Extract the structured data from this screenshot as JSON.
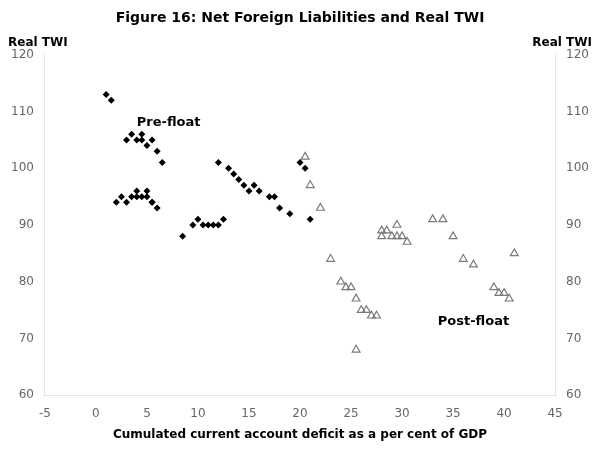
{
  "chart_data": {
    "type": "scatter",
    "title": "Figure 16: Net Foreign Liabilities and Real TWI",
    "xlabel": "Cumulated current account deficit as a per cent of GDP",
    "ylabel": "Real TWI",
    "y2label": "Real TWI",
    "xlim": [
      -5,
      45
    ],
    "ylim": [
      60,
      120
    ],
    "y2lim": [
      60,
      120
    ],
    "xticks": [
      -5,
      0,
      5,
      10,
      15,
      20,
      25,
      30,
      35,
      40,
      45
    ],
    "yticks": [
      60,
      70,
      80,
      90,
      100,
      110,
      120
    ],
    "y2ticks": [
      60,
      70,
      80,
      90,
      100,
      110,
      120
    ],
    "grid": false,
    "series": [
      {
        "color": "#000000",
        "marker": "diamond",
        "x": [
          1,
          1.5,
          2,
          2.5,
          3,
          3.5,
          4,
          4,
          4.5,
          5,
          5,
          5.5,
          5.5,
          6,
          3,
          3.5,
          4,
          4.5,
          4.5,
          5,
          5.5,
          6,
          6.5,
          8.5,
          9.5,
          10,
          10.5,
          11,
          11.5,
          12,
          12.5,
          12,
          13,
          13.5,
          14,
          14.5,
          15,
          15.5,
          16,
          17,
          17.5,
          18,
          19,
          20,
          20.5,
          21
        ],
        "values": [
          113,
          112,
          94,
          95,
          94,
          95,
          95,
          96,
          95,
          95,
          96,
          94,
          94,
          93,
          105,
          106,
          105,
          106,
          105,
          104,
          105,
          103,
          101,
          88,
          90,
          91,
          90,
          90,
          90,
          90,
          91,
          101,
          100,
          99,
          98,
          97,
          96,
          97,
          96,
          95,
          95,
          93,
          92,
          101,
          100,
          91
        ]
      },
      {
        "color": "#7a7a7a",
        "marker": "triangle_open",
        "x": [
          20.5,
          21,
          22,
          23,
          24,
          24.5,
          25,
          25.5,
          26,
          26.5,
          27,
          27.5,
          28,
          28,
          28.5,
          29,
          29.5,
          29.5,
          30,
          30.5,
          33,
          34,
          35,
          36,
          37,
          39,
          39.5,
          40,
          40.5,
          41,
          25.5
        ],
        "values": [
          102,
          97,
          93,
          84,
          80,
          79,
          79,
          77,
          75,
          75,
          74,
          74,
          88,
          89,
          89,
          88,
          90,
          88,
          88,
          87,
          91,
          91,
          88,
          84,
          83,
          79,
          78,
          78,
          77,
          85,
          68
        ]
      }
    ],
    "annotations": [
      {
        "text": "Pre-float",
        "x": 4.0,
        "y": 108
      },
      {
        "text": "Post-float",
        "x": 33.5,
        "y": 73
      }
    ]
  }
}
